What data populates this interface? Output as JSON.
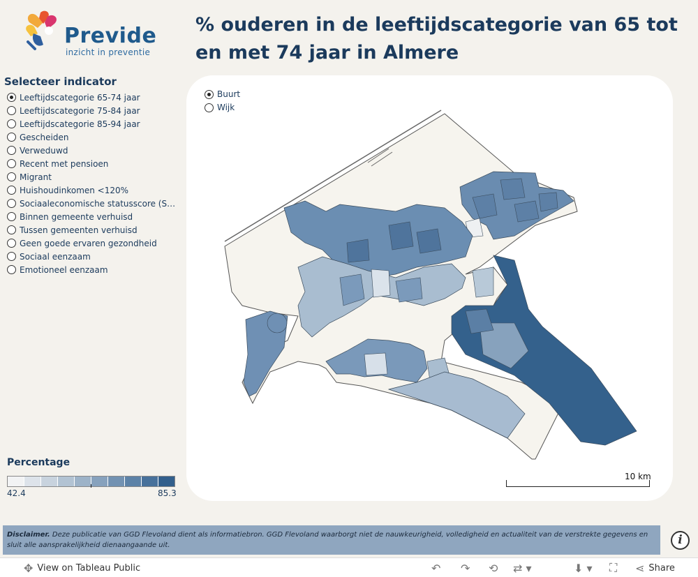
{
  "brand": {
    "name": "Previde",
    "tagline": "inzicht in preventie"
  },
  "title": "% ouderen in de leeftijdscategorie van 65 tot en met 74 jaar in Almere",
  "indicator_panel": {
    "header": "Selecteer indicator",
    "selected_index": 0,
    "items": [
      "Leeftijdscategorie 65-74 jaar",
      "Leeftijdscategorie 75-84 jaar",
      "Leeftijdscategorie 85-94 jaar",
      "Gescheiden",
      "Verweduwd",
      "Recent met pensioen",
      "Migrant",
      "Huishoudinkomen <120%",
      "Sociaaleconomische statusscore (SES-…",
      "Binnen gemeente verhuisd",
      "Tussen gemeenten verhuisd",
      "Geen goede ervaren gezondheid",
      "Sociaal eenzaam",
      "Emotioneel eenzaam"
    ]
  },
  "level_toggle": {
    "options": [
      "Buurt",
      "Wijk"
    ],
    "selected": "Buurt"
  },
  "legend": {
    "title": "Percentage",
    "min": "42.4",
    "max": "85.3",
    "colors": [
      "#f2f3f4",
      "#dde3ea",
      "#c8d3de",
      "#b2c3d3",
      "#9db3c8",
      "#87a2bd",
      "#7292b2",
      "#5c82a7",
      "#47719b",
      "#325f8c"
    ]
  },
  "map": {
    "scale_label": "10 km",
    "land_color": "#f6f4ee",
    "border_color": "#555555"
  },
  "disclaimer": {
    "label": "Disclaimer.",
    "text": "Deze publicatie van GGD Flevoland dient als informatiebron. GGD Flevoland waarborgt niet de nauwkeurigheid, volledigheid en actualiteit van de verstrekte gegevens en sluit alle aansprakelijkheid dienaangaande uit."
  },
  "footer": {
    "view_label": "View on Tableau Public",
    "share_label": "Share"
  }
}
